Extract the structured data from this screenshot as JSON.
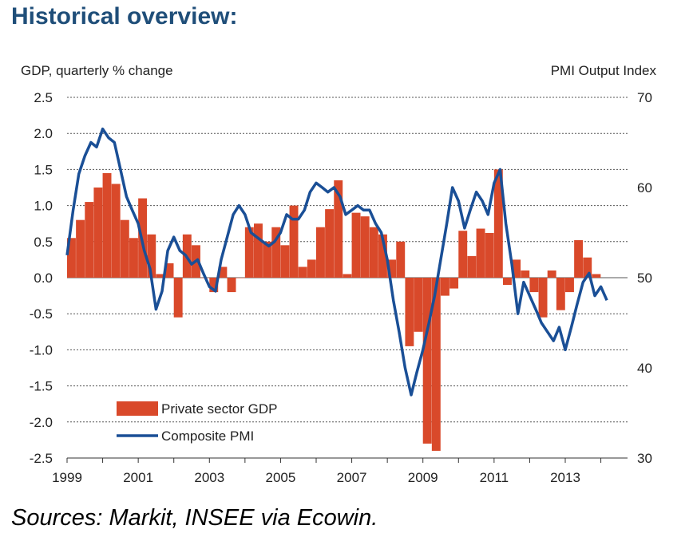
{
  "page": {
    "title": "Historical overview:",
    "source": "Sources: Markit, INSEE via Ecowin."
  },
  "colors": {
    "title": "#1f4e79",
    "gdp_bar": "#d9492a",
    "pmi_line": "#1a4f96",
    "grid": "#555555",
    "text": "#222222"
  },
  "chart_data": {
    "type": "bar",
    "title": "",
    "left_axis": {
      "label": "GDP, quarterly % change",
      "min": -2.5,
      "max": 2.5,
      "ticks": [
        "2.5",
        "2.0",
        "1.5",
        "1.0",
        "0.5",
        "0.0",
        "-0.5",
        "-1.0",
        "-1.5",
        "-2.0",
        "-2.5"
      ],
      "tick_values": [
        2.5,
        2.0,
        1.5,
        1.0,
        0.5,
        0.0,
        -0.5,
        -1.0,
        -1.5,
        -2.0,
        -2.5
      ]
    },
    "right_axis": {
      "label": "PMI Output  Index",
      "min": 30,
      "max": 70,
      "ticks": [
        "70",
        "60",
        "50",
        "40",
        "30"
      ],
      "tick_values": [
        70,
        60,
        50,
        40,
        30
      ]
    },
    "x_axis": {
      "min": 1999.0,
      "max": 2014.75,
      "tick_labels": [
        "1999",
        "2001",
        "2003",
        "2005",
        "2007",
        "2009",
        "2011",
        "2013"
      ],
      "tick_values": [
        1999,
        2001,
        2003,
        2005,
        2007,
        2009,
        2011,
        2013
      ]
    },
    "grid": "horizontal dashed",
    "legend": {
      "position": "bottom-left",
      "items": [
        {
          "label": "Private sector GDP",
          "kind": "bar"
        },
        {
          "label": "Composite PMI",
          "kind": "line"
        }
      ]
    },
    "series": [
      {
        "name": "Private sector GDP",
        "axis": "left",
        "type": "bar",
        "x": [
          1999.0,
          1999.25,
          1999.5,
          1999.75,
          2000.0,
          2000.25,
          2000.5,
          2000.75,
          2001.0,
          2001.25,
          2001.5,
          2001.75,
          2002.0,
          2002.25,
          2002.5,
          2002.75,
          2003.0,
          2003.25,
          2003.5,
          2003.75,
          2004.0,
          2004.25,
          2004.5,
          2004.75,
          2005.0,
          2005.25,
          2005.5,
          2005.75,
          2006.0,
          2006.25,
          2006.5,
          2006.75,
          2007.0,
          2007.25,
          2007.5,
          2007.75,
          2008.0,
          2008.25,
          2008.5,
          2008.75,
          2009.0,
          2009.25,
          2009.5,
          2009.75,
          2010.0,
          2010.25,
          2010.5,
          2010.75,
          2011.0,
          2011.25,
          2011.5,
          2011.75,
          2012.0,
          2012.25,
          2012.5,
          2012.75,
          2013.0,
          2013.25,
          2013.5,
          2013.75
        ],
        "values": [
          0.55,
          0.8,
          1.05,
          1.25,
          1.45,
          1.3,
          0.8,
          0.55,
          1.1,
          0.6,
          0.05,
          0.2,
          -0.55,
          0.6,
          0.45,
          0.0,
          -0.2,
          0.15,
          -0.2,
          0.0,
          0.7,
          0.75,
          0.5,
          0.7,
          0.45,
          1.0,
          0.15,
          0.25,
          0.7,
          0.95,
          1.35,
          0.05,
          0.9,
          0.85,
          0.7,
          0.6,
          0.25,
          0.5,
          -0.95,
          -0.75,
          -2.3,
          -2.4,
          -0.25,
          -0.15,
          0.65,
          0.3,
          0.68,
          0.62,
          1.5,
          -0.1,
          0.25,
          0.1,
          -0.2,
          -0.55,
          0.1,
          -0.45,
          -0.2,
          0.52,
          0.28,
          0.05
        ]
      },
      {
        "name": "Composite PMI",
        "axis": "right",
        "type": "line",
        "x": [
          1999.0,
          1999.17,
          1999.33,
          1999.5,
          1999.67,
          1999.83,
          2000.0,
          2000.17,
          2000.33,
          2000.5,
          2000.67,
          2000.83,
          2001.0,
          2001.17,
          2001.33,
          2001.5,
          2001.67,
          2001.83,
          2002.0,
          2002.17,
          2002.33,
          2002.5,
          2002.67,
          2002.83,
          2003.0,
          2003.17,
          2003.33,
          2003.5,
          2003.67,
          2003.83,
          2004.0,
          2004.17,
          2004.33,
          2004.5,
          2004.67,
          2004.83,
          2005.0,
          2005.17,
          2005.33,
          2005.5,
          2005.67,
          2005.83,
          2006.0,
          2006.17,
          2006.33,
          2006.5,
          2006.67,
          2006.83,
          2007.0,
          2007.17,
          2007.33,
          2007.5,
          2007.67,
          2007.83,
          2008.0,
          2008.17,
          2008.33,
          2008.5,
          2008.67,
          2008.83,
          2009.0,
          2009.17,
          2009.33,
          2009.5,
          2009.67,
          2009.83,
          2010.0,
          2010.17,
          2010.33,
          2010.5,
          2010.67,
          2010.83,
          2011.0,
          2011.17,
          2011.33,
          2011.5,
          2011.67,
          2011.83,
          2012.0,
          2012.17,
          2012.33,
          2012.5,
          2012.67,
          2012.83,
          2013.0,
          2013.17,
          2013.33,
          2013.5,
          2013.67,
          2013.83,
          2014.0,
          2014.17
        ],
        "values": [
          52.5,
          57.5,
          61.5,
          63.5,
          65.0,
          64.5,
          66.5,
          65.5,
          65.0,
          62.0,
          59.0,
          57.5,
          56.0,
          53.0,
          51.0,
          46.5,
          48.5,
          53.0,
          54.5,
          53.0,
          52.5,
          51.5,
          52.0,
          50.5,
          49.0,
          48.5,
          52.0,
          54.5,
          57.0,
          58.0,
          57.0,
          55.0,
          54.5,
          54.0,
          53.5,
          54.0,
          55.0,
          57.0,
          56.5,
          56.5,
          57.5,
          59.5,
          60.5,
          60.0,
          59.5,
          60.0,
          59.0,
          57.0,
          57.5,
          58.0,
          57.5,
          57.5,
          56.0,
          55.0,
          52.0,
          47.5,
          44.0,
          40.0,
          37.0,
          39.5,
          42.0,
          45.0,
          48.0,
          52.0,
          56.0,
          60.0,
          58.5,
          55.5,
          57.5,
          59.5,
          58.5,
          57.0,
          60.5,
          62.0,
          56.0,
          51.5,
          46.0,
          49.5,
          48.0,
          46.5,
          45.0,
          44.0,
          43.0,
          44.5,
          42.0,
          44.5,
          47.0,
          49.5,
          50.5,
          48.0,
          49.0,
          47.5
        ]
      }
    ]
  }
}
